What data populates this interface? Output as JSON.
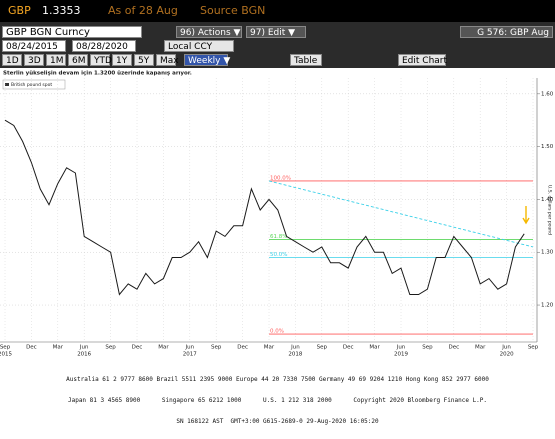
{
  "header": {
    "ticker": "GBP",
    "price": "1.3353",
    "as_of": "As of 28 Aug",
    "source": "Source BGN"
  },
  "toolbar": {
    "security": "GBP BGN Curncy",
    "actions": "96) Actions ▼",
    "edit": "97) Edit ▼",
    "page": "G 576: GBP Aug",
    "start_date": "08/24/2015",
    "end_date": "08/28/2020",
    "currency": "Local CCY",
    "periods": [
      "1D",
      "3D",
      "1M",
      "6M",
      "YTD",
      "1Y",
      "5Y",
      "Max"
    ],
    "frequency": "Weekly ▼",
    "table": "Table",
    "edit_chart": "Edit Chart"
  },
  "chart_data": {
    "type": "line",
    "subtitle": "Sterlin yükselişin devam için 1.3200 üzerinde kapanış arıyor.",
    "y_label": "U.S. dollars per pound",
    "categories": [
      "Sep",
      null,
      null,
      "Dec",
      null,
      null,
      "Mar",
      null,
      null,
      "Jun",
      null,
      null,
      "Sep",
      null,
      null,
      "Dec",
      null,
      null,
      "Mar",
      null,
      null,
      "Jun",
      null,
      null,
      "Sep",
      null,
      null,
      "Dec",
      null,
      null,
      "Mar",
      null,
      null,
      "Jun",
      null,
      null,
      "Sep",
      null,
      null,
      "Dec",
      null,
      null,
      "Mar",
      null,
      null,
      "Jun",
      null,
      null,
      "Sep",
      null,
      null,
      "Dec",
      null,
      null,
      "Mar",
      null,
      null,
      "Jun",
      null,
      null,
      "Sep"
    ],
    "year_labels": [
      {
        "index": 0,
        "label": "2015"
      },
      {
        "index": 9,
        "label": "2016"
      },
      {
        "index": 21,
        "label": "2017"
      },
      {
        "index": 33,
        "label": "2018"
      },
      {
        "index": 45,
        "label": "2019"
      },
      {
        "index": 57,
        "label": "2020"
      }
    ],
    "series": [
      {
        "name": "British pound spot",
        "color": "#1a1a1a",
        "values": [
          1.55,
          1.54,
          1.51,
          1.47,
          1.42,
          1.39,
          1.43,
          1.46,
          1.45,
          1.33,
          1.32,
          1.31,
          1.3,
          1.22,
          1.24,
          1.23,
          1.26,
          1.24,
          1.25,
          1.29,
          1.29,
          1.3,
          1.32,
          1.29,
          1.34,
          1.33,
          1.35,
          1.35,
          1.42,
          1.38,
          1.4,
          1.38,
          1.33,
          1.32,
          1.31,
          1.3,
          1.31,
          1.28,
          1.28,
          1.27,
          1.31,
          1.33,
          1.3,
          1.3,
          1.26,
          1.27,
          1.22,
          1.22,
          1.23,
          1.29,
          1.29,
          1.33,
          1.31,
          1.29,
          1.24,
          1.25,
          1.23,
          1.24,
          1.31,
          1.335,
          null
        ]
      }
    ],
    "fib_levels": [
      {
        "label": "100.0%",
        "value": 1.435,
        "color": "#ff5a5a"
      },
      {
        "label": "61.8%",
        "value": 1.324,
        "color": "#5ad65a"
      },
      {
        "label": "50.0%",
        "value": 1.29,
        "color": "#38d0e8"
      },
      {
        "label": "0.0%",
        "value": 1.145,
        "color": "#ff5a5a"
      }
    ],
    "trendline": {
      "start_index": 30,
      "start_value": 1.435,
      "end_index": 60,
      "end_value": 1.31,
      "color": "#38d0e8"
    },
    "ylim": [
      1.13,
      1.63
    ],
    "yticks": [
      {
        "value": 1.2,
        "label": "1.20"
      },
      {
        "value": 1.3,
        "label": "1.30"
      },
      {
        "value": 1.4,
        "label": "1.40"
      },
      {
        "value": 1.5,
        "label": "1.50"
      },
      {
        "value": 1.6,
        "label": "1.60"
      }
    ],
    "grid": true
  },
  "footer": [
    "Australia 61 2 9777 8600 Brazil 5511 2395 9000 Europe 44 20 7330 7500 Germany 49 69 9204 1210 Hong Kong 852 2977 6000",
    "Japan 81 3 4565 8900      Singapore 65 6212 1000      U.S. 1 212 318 2000      Copyright 2020 Bloomberg Finance L.P.",
    "SN 168122 AST  GMT+3:00 G615-2689-0 29-Aug-2020 16:05:20"
  ]
}
